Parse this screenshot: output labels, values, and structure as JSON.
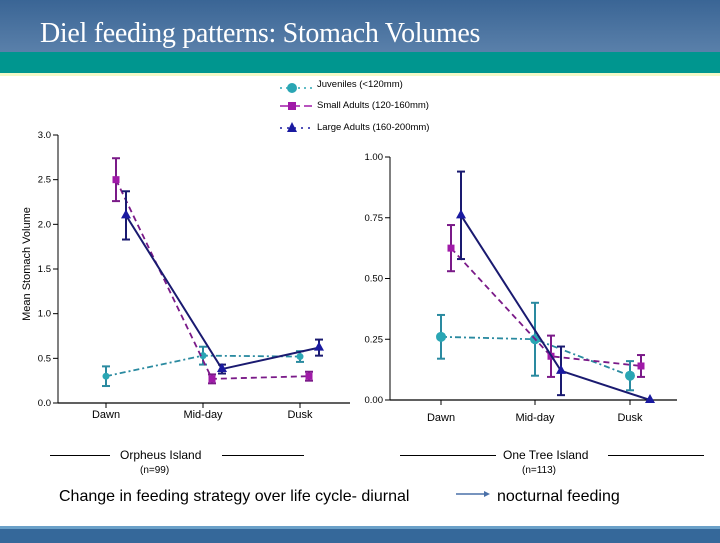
{
  "slide": {
    "title": "Diel feeding patterns: Stomach Volumes",
    "caption_left": "Change in feeding strategy over life cycle- diurnal",
    "caption_right": "nocturnal feeding",
    "colors": {
      "header_top": "#3a6595",
      "header_bottom": "#5a80aa",
      "teal_band": "#00968f",
      "footer": "#35689a"
    }
  },
  "legend": [
    {
      "label": "Juveniles  (<120mm)",
      "marker": "circle",
      "color": "#2aa6b4",
      "line": "dash-dot"
    },
    {
      "label": "Small Adults (120-160mm)",
      "marker": "square",
      "color": "#a01aa8",
      "line": "dashed"
    },
    {
      "label": "Large Adults (160-200mm)",
      "marker": "triangle",
      "color": "#1a1aa0",
      "line": "solid"
    }
  ],
  "chart_data": [
    {
      "type": "line",
      "title": "Orpheus Island",
      "subtitle": "(n=99)",
      "ylabel": "Mean Stomach Volume",
      "xlabel": "",
      "categories": [
        "Dawn",
        "Mid-day",
        "Dusk"
      ],
      "ylim": [
        0,
        3.0
      ],
      "yticks": [
        "0.0",
        "0.5",
        "1.0",
        "1.5",
        "2.0",
        "2.5",
        "3.0"
      ],
      "ytick_values": [
        0,
        0.5,
        1.0,
        1.5,
        2.0,
        2.5,
        3.0
      ],
      "grid": false,
      "series": [
        {
          "name": "Juveniles (<120mm)",
          "values": [
            0.3,
            0.53,
            0.52
          ],
          "errors": [
            0.11,
            0.1,
            0.06
          ]
        },
        {
          "name": "Small Adults (120-160mm)",
          "values": [
            2.5,
            0.27,
            0.3
          ],
          "errors": [
            0.24,
            0.05,
            0.05
          ]
        },
        {
          "name": "Large Adults (160-200mm)",
          "values": [
            2.1,
            0.38,
            0.62
          ],
          "errors": [
            0.27,
            0.05,
            0.09
          ]
        }
      ]
    },
    {
      "type": "line",
      "title": "One Tree Island",
      "subtitle": "(n=113)",
      "ylabel": "",
      "xlabel": "",
      "categories": [
        "Dawn",
        "Mid-day",
        "Dusk"
      ],
      "ylim": [
        0,
        1.0
      ],
      "yticks": [
        "0.00",
        "0.25",
        "0.50",
        "0.75",
        "1.00"
      ],
      "ytick_values": [
        0,
        0.25,
        0.5,
        0.75,
        1.0
      ],
      "grid": false,
      "series": [
        {
          "name": "Juveniles (<120mm)",
          "values": [
            0.26,
            0.25,
            0.1
          ],
          "errors": [
            0.09,
            0.15,
            0.06
          ]
        },
        {
          "name": "Small Adults (120-160mm)",
          "values": [
            0.625,
            0.18,
            0.14
          ],
          "errors": [
            0.095,
            0.085,
            0.045
          ]
        },
        {
          "name": "Large Adults (160-200mm)",
          "values": [
            0.76,
            0.12,
            0.0
          ],
          "errors": [
            0.18,
            0.1,
            0.0
          ]
        }
      ]
    }
  ]
}
